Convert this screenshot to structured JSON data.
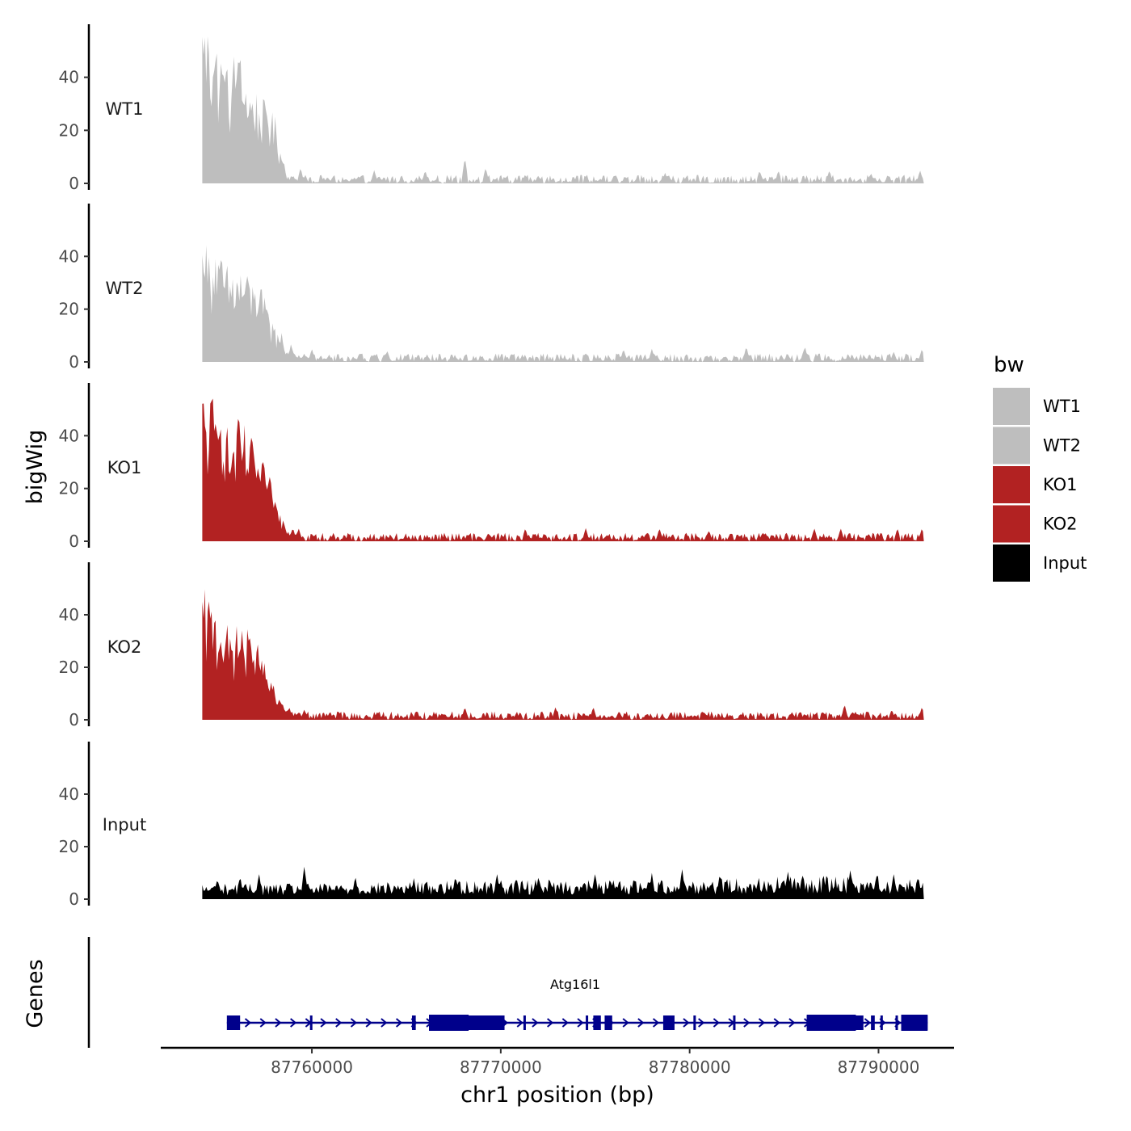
{
  "chart_data": {
    "type": "area",
    "chromosome": "chr1",
    "xlabel": "chr1 position (bp)",
    "ylabel": "bigWig",
    "gene_track_label": "Genes",
    "xlim": [
      87752000,
      87794000
    ],
    "x_ticks": [
      87760000,
      87770000,
      87780000,
      87790000
    ],
    "ylim": [
      0,
      60
    ],
    "y_ticks": [
      0,
      20,
      40
    ],
    "legend": {
      "title": "bw",
      "entries": [
        {
          "label": "WT1",
          "color": "#bebebe"
        },
        {
          "label": "WT2",
          "color": "#bebebe"
        },
        {
          "label": "KO1",
          "color": "#b22222"
        },
        {
          "label": "KO2",
          "color": "#b22222"
        },
        {
          "label": "Input",
          "color": "#000000"
        }
      ]
    },
    "region": [
      87754200,
      87792400
    ],
    "series": [
      {
        "name": "WT1",
        "color": "#bebebe",
        "profile": [
          [
            87754200,
            56
          ],
          [
            87754700,
            50
          ],
          [
            87755200,
            44
          ],
          [
            87755600,
            36
          ],
          [
            87756000,
            46
          ],
          [
            87756600,
            34
          ],
          [
            87757100,
            30
          ],
          [
            87757700,
            24
          ],
          [
            87758100,
            21
          ],
          [
            87758400,
            10
          ],
          [
            87758700,
            3
          ],
          [
            87759200,
            2
          ]
        ],
        "peaks": [
          [
            87754300,
            57
          ],
          [
            87754550,
            49
          ],
          [
            87754800,
            50
          ],
          [
            87755400,
            40
          ],
          [
            87755900,
            43
          ],
          [
            87756100,
            48
          ],
          [
            87756450,
            31
          ],
          [
            87756700,
            34
          ],
          [
            87756950,
            26
          ],
          [
            87757400,
            20
          ],
          [
            87757650,
            28
          ],
          [
            87757850,
            22
          ],
          [
            87758100,
            21
          ],
          [
            87758500,
            9
          ],
          [
            87759400,
            6
          ],
          [
            87763300,
            5
          ],
          [
            87766000,
            5
          ],
          [
            87768100,
            10
          ],
          [
            87769200,
            6
          ],
          [
            87778700,
            4
          ],
          [
            87783700,
            5
          ],
          [
            87784700,
            5
          ],
          [
            87787400,
            5
          ],
          [
            87789600,
            4
          ],
          [
            87792200,
            5
          ]
        ]
      },
      {
        "name": "WT2",
        "color": "#bebebe",
        "profile": [
          [
            87754200,
            40
          ],
          [
            87754700,
            36
          ],
          [
            87755200,
            34
          ],
          [
            87755700,
            30
          ],
          [
            87756200,
            32
          ],
          [
            87756700,
            28
          ],
          [
            87757300,
            24
          ],
          [
            87757900,
            14
          ],
          [
            87758400,
            6
          ],
          [
            87758900,
            3
          ],
          [
            87759500,
            2
          ]
        ],
        "peaks": [
          [
            87754300,
            40
          ],
          [
            87754600,
            33
          ],
          [
            87754900,
            39
          ],
          [
            87755200,
            37
          ],
          [
            87755500,
            24
          ],
          [
            87755800,
            33
          ],
          [
            87756100,
            30
          ],
          [
            87756500,
            31
          ],
          [
            87756750,
            22
          ],
          [
            87757000,
            26
          ],
          [
            87757300,
            25
          ],
          [
            87757700,
            18
          ],
          [
            87758000,
            13
          ],
          [
            87758400,
            11
          ],
          [
            87758900,
            7
          ],
          [
            87760000,
            5
          ],
          [
            87764000,
            4
          ],
          [
            87776500,
            5
          ],
          [
            87778000,
            5
          ],
          [
            87783000,
            6
          ],
          [
            87786100,
            6
          ],
          [
            87790800,
            4
          ],
          [
            87792300,
            5
          ]
        ]
      },
      {
        "name": "KO1",
        "color": "#b22222",
        "profile": [
          [
            87754200,
            50
          ],
          [
            87754700,
            47
          ],
          [
            87755200,
            42
          ],
          [
            87755700,
            34
          ],
          [
            87756200,
            40
          ],
          [
            87756700,
            34
          ],
          [
            87757200,
            28
          ],
          [
            87757800,
            20
          ],
          [
            87758300,
            10
          ],
          [
            87758800,
            5
          ],
          [
            87759500,
            2
          ]
        ],
        "peaks": [
          [
            87754250,
            53
          ],
          [
            87754600,
            46
          ],
          [
            87754850,
            44
          ],
          [
            87755150,
            50
          ],
          [
            87755450,
            32
          ],
          [
            87755700,
            30
          ],
          [
            87756050,
            45
          ],
          [
            87756400,
            40
          ],
          [
            87756700,
            34
          ],
          [
            87757000,
            28
          ],
          [
            87757300,
            25
          ],
          [
            87757600,
            23
          ],
          [
            87758000,
            14
          ],
          [
            87758500,
            8
          ],
          [
            87759000,
            5
          ],
          [
            87759300,
            5
          ],
          [
            87771300,
            5
          ],
          [
            87774500,
            5
          ],
          [
            87778400,
            5
          ],
          [
            87781000,
            4
          ],
          [
            87786600,
            5
          ],
          [
            87788000,
            5
          ],
          [
            87791000,
            5
          ],
          [
            87792300,
            5
          ]
        ]
      },
      {
        "name": "KO2",
        "color": "#b22222",
        "profile": [
          [
            87754200,
            42
          ],
          [
            87754700,
            40
          ],
          [
            87755200,
            35
          ],
          [
            87755700,
            28
          ],
          [
            87756200,
            32
          ],
          [
            87756700,
            28
          ],
          [
            87757200,
            24
          ],
          [
            87757800,
            14
          ],
          [
            87758300,
            6
          ],
          [
            87758900,
            3
          ],
          [
            87759600,
            2
          ]
        ],
        "peaks": [
          [
            87754250,
            43
          ],
          [
            87754550,
            42
          ],
          [
            87754850,
            41
          ],
          [
            87755200,
            33
          ],
          [
            87755500,
            25
          ],
          [
            87755750,
            28
          ],
          [
            87756000,
            37
          ],
          [
            87756300,
            34
          ],
          [
            87756600,
            26
          ],
          [
            87756900,
            27
          ],
          [
            87757250,
            22
          ],
          [
            87757600,
            18
          ],
          [
            87757900,
            12
          ],
          [
            87758300,
            8
          ],
          [
            87758800,
            5
          ],
          [
            87759600,
            4
          ],
          [
            87768100,
            5
          ],
          [
            87772900,
            5
          ],
          [
            87774900,
            5
          ],
          [
            87788200,
            6
          ],
          [
            87790700,
            4
          ],
          [
            87792300,
            5
          ]
        ]
      },
      {
        "name": "Input",
        "color": "#000000",
        "profile": [
          [
            87754200,
            4
          ],
          [
            87760000,
            4
          ],
          [
            87770000,
            5
          ],
          [
            87780000,
            5
          ],
          [
            87786000,
            6
          ],
          [
            87790000,
            6
          ],
          [
            87792400,
            5
          ]
        ],
        "peaks": [
          [
            87755000,
            8
          ],
          [
            87756200,
            9
          ],
          [
            87757200,
            10
          ],
          [
            87759600,
            13
          ],
          [
            87762300,
            9
          ],
          [
            87765400,
            8
          ],
          [
            87767600,
            9
          ],
          [
            87769800,
            10
          ],
          [
            87772000,
            9
          ],
          [
            87775000,
            10
          ],
          [
            87778000,
            10
          ],
          [
            87779600,
            12
          ],
          [
            87781600,
            10
          ],
          [
            87785200,
            11
          ],
          [
            87788500,
            11
          ],
          [
            87790800,
            10
          ],
          [
            87792100,
            9
          ]
        ]
      }
    ],
    "gene": {
      "name": "Atg16l1",
      "strand": "+",
      "color": "#00008b",
      "start": 87755500,
      "end": 87792600,
      "exons": [
        [
          87755500,
          87756200
        ],
        [
          87759900,
          87760000
        ],
        [
          87765300,
          87765500
        ],
        [
          87766200,
          87770200
        ],
        [
          87771200,
          87771300
        ],
        [
          87774500,
          87774600
        ],
        [
          87774900,
          87775300
        ],
        [
          87775500,
          87775900
        ],
        [
          87778600,
          87779200
        ],
        [
          87780200,
          87780300
        ],
        [
          87782300,
          87782400
        ],
        [
          87786200,
          87789200
        ],
        [
          87789600,
          87789800
        ],
        [
          87790100,
          87790200
        ],
        [
          87790900,
          87791000
        ],
        [
          87791200,
          87792600
        ]
      ],
      "thick_exons": [
        [
          87766200,
          87768300
        ],
        [
          87786200,
          87788800
        ],
        [
          87791200,
          87792600
        ]
      ]
    }
  }
}
